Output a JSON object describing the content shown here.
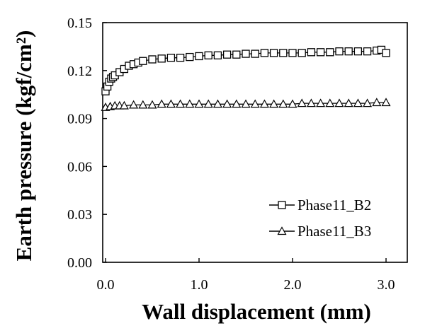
{
  "chart_data": {
    "type": "scatter",
    "title": "",
    "xlabel": "Wall displacement (mm)",
    "ylabel": "Earth pressure (kgf/cm²)",
    "xlim": [
      0.0,
      3.0
    ],
    "ylim": [
      0.0,
      0.15
    ],
    "x_ticks": [
      "0.0",
      "1.0",
      "2.0",
      "3.0"
    ],
    "y_ticks": [
      "0.00",
      "0.03",
      "0.06",
      "0.09",
      "0.12",
      "0.15"
    ],
    "grid": false,
    "legend_position": "bottom-right",
    "series": [
      {
        "name": "Phase11_B2",
        "marker": "square",
        "x": [
          0.0,
          0.02,
          0.04,
          0.06,
          0.08,
          0.1,
          0.15,
          0.2,
          0.25,
          0.3,
          0.35,
          0.4,
          0.5,
          0.6,
          0.7,
          0.8,
          0.9,
          1.0,
          1.1,
          1.2,
          1.3,
          1.4,
          1.5,
          1.6,
          1.7,
          1.8,
          1.9,
          2.0,
          2.1,
          2.2,
          2.3,
          2.4,
          2.5,
          2.6,
          2.7,
          2.8,
          2.9,
          2.95,
          3.0
        ],
        "y": [
          0.107,
          0.11,
          0.113,
          0.115,
          0.116,
          0.117,
          0.119,
          0.121,
          0.123,
          0.124,
          0.125,
          0.126,
          0.127,
          0.1275,
          0.128,
          0.128,
          0.1285,
          0.129,
          0.1295,
          0.1295,
          0.13,
          0.13,
          0.1305,
          0.1305,
          0.131,
          0.131,
          0.131,
          0.131,
          0.131,
          0.1315,
          0.1315,
          0.1315,
          0.132,
          0.132,
          0.132,
          0.132,
          0.1325,
          0.133,
          0.131
        ]
      },
      {
        "name": "Phase11_B3",
        "marker": "triangle",
        "x": [
          0.0,
          0.05,
          0.1,
          0.15,
          0.2,
          0.3,
          0.4,
          0.5,
          0.6,
          0.7,
          0.8,
          0.9,
          1.0,
          1.1,
          1.2,
          1.3,
          1.4,
          1.5,
          1.6,
          1.7,
          1.8,
          1.9,
          2.0,
          2.1,
          2.2,
          2.3,
          2.4,
          2.5,
          2.6,
          2.7,
          2.8,
          2.9,
          3.0
        ],
        "y": [
          0.097,
          0.0975,
          0.098,
          0.098,
          0.098,
          0.0985,
          0.0985,
          0.0985,
          0.099,
          0.099,
          0.099,
          0.099,
          0.099,
          0.099,
          0.099,
          0.099,
          0.099,
          0.099,
          0.099,
          0.099,
          0.099,
          0.099,
          0.099,
          0.0995,
          0.0995,
          0.0995,
          0.0995,
          0.0995,
          0.0995,
          0.0995,
          0.0995,
          0.1,
          0.1
        ]
      }
    ]
  }
}
